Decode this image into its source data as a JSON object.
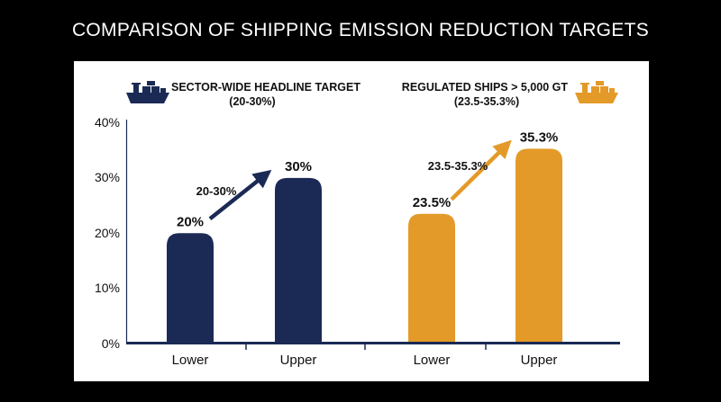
{
  "title": "COMPARISON OF SHIPPING EMISSION REDUCTION TARGETS",
  "chart_data": {
    "type": "bar",
    "title": "COMPARISON OF SHIPPING EMISSION REDUCTION TARGETS",
    "xlabel": "",
    "ylabel": "",
    "ylim": [
      0,
      40
    ],
    "yticks": [
      "0%",
      "10%",
      "20%",
      "30%",
      "40%"
    ],
    "grid": false,
    "legend_placement": "top",
    "groups": [
      {
        "name": "SECTOR-WIDE HEADLINE TARGET",
        "range_text": "(20-30%)",
        "arrow_label": "20-30%",
        "color": "#1b2a55",
        "icon": "cargo-ship-icon",
        "categories": [
          "Lower",
          "Upper"
        ],
        "values": [
          20,
          30
        ],
        "labels": [
          "20%",
          "30%"
        ]
      },
      {
        "name": "REGULATED SHIPS > 5,000 GT",
        "range_text": "(23.5-35.3%)",
        "arrow_label": "23.5-35.3%",
        "color": "#e39a28",
        "icon": "cargo-ship-icon",
        "categories": [
          "Lower",
          "Upper"
        ],
        "values": [
          23.5,
          35.3
        ],
        "labels": [
          "23.5%",
          "35.3%"
        ]
      }
    ]
  }
}
